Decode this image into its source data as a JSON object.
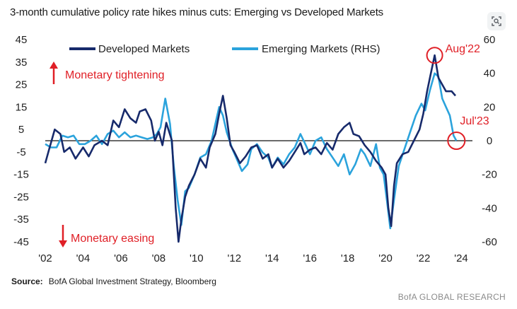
{
  "title": "3-month cumulative policy rate hikes minus cuts: Emerging vs Developed Markets",
  "source_label": "Source:",
  "source_text": "BofA Global Investment Strategy, Bloomberg",
  "brand": "BofA GLOBAL RESEARCH",
  "lens_icon": "image-search-icon",
  "annotations": {
    "tightening": "Monetary tightening",
    "easing": "Monetary easing",
    "peak": "Aug'22",
    "latest": "Jul'23"
  },
  "colors": {
    "dm": "#172a6b",
    "em": "#2ba3dc",
    "annotation": "#e01f26"
  },
  "chart_data": {
    "type": "line",
    "x_ticks": [
      "'02",
      "'04",
      "'06",
      "'08",
      "'10",
      "'12",
      "'14",
      "'16",
      "'18",
      "'20",
      "'22",
      "'24"
    ],
    "y_left_ticks": [
      "45",
      "35",
      "25",
      "15",
      "5",
      "-5",
      "-15",
      "-25",
      "-35",
      "-45"
    ],
    "y_right_ticks": [
      "60",
      "40",
      "20",
      "0",
      "-20",
      "-40",
      "-60"
    ],
    "ylim_left": [
      -45,
      45
    ],
    "ylim_right": [
      -60,
      60
    ],
    "xlim": [
      2002,
      2024
    ],
    "series": [
      {
        "name": "Developed Markets",
        "axis": "left",
        "points": [
          [
            2002.0,
            -10
          ],
          [
            2002.2,
            -4
          ],
          [
            2002.5,
            5
          ],
          [
            2002.8,
            3
          ],
          [
            2003.0,
            -5
          ],
          [
            2003.3,
            -3
          ],
          [
            2003.6,
            -8
          ],
          [
            2004.0,
            -3
          ],
          [
            2004.3,
            -7
          ],
          [
            2004.6,
            -2
          ],
          [
            2005.0,
            0
          ],
          [
            2005.3,
            -2
          ],
          [
            2005.6,
            9
          ],
          [
            2005.9,
            6
          ],
          [
            2006.2,
            14
          ],
          [
            2006.5,
            10
          ],
          [
            2006.8,
            8
          ],
          [
            2007.0,
            13
          ],
          [
            2007.3,
            14
          ],
          [
            2007.6,
            9
          ],
          [
            2007.8,
            0
          ],
          [
            2008.0,
            4
          ],
          [
            2008.2,
            -2
          ],
          [
            2008.4,
            8
          ],
          [
            2008.7,
            0
          ],
          [
            2008.9,
            -30
          ],
          [
            2009.05,
            -45
          ],
          [
            2009.2,
            -35
          ],
          [
            2009.4,
            -25
          ],
          [
            2009.6,
            -20
          ],
          [
            2009.9,
            -15
          ],
          [
            2010.2,
            -8
          ],
          [
            2010.5,
            -12
          ],
          [
            2010.7,
            -3
          ],
          [
            2011.0,
            3
          ],
          [
            2011.2,
            12
          ],
          [
            2011.4,
            20
          ],
          [
            2011.6,
            10
          ],
          [
            2011.8,
            -2
          ],
          [
            2012.0,
            -5
          ],
          [
            2012.3,
            -10
          ],
          [
            2012.6,
            -7
          ],
          [
            2012.9,
            -3
          ],
          [
            2013.2,
            -2
          ],
          [
            2013.5,
            -8
          ],
          [
            2013.8,
            -6
          ],
          [
            2014.0,
            -12
          ],
          [
            2014.3,
            -8
          ],
          [
            2014.6,
            -12
          ],
          [
            2014.9,
            -9
          ],
          [
            2015.2,
            -5
          ],
          [
            2015.5,
            -1
          ],
          [
            2015.7,
            -6
          ],
          [
            2016.0,
            -4
          ],
          [
            2016.3,
            -3
          ],
          [
            2016.6,
            -6
          ],
          [
            2016.9,
            -1
          ],
          [
            2017.2,
            -4
          ],
          [
            2017.5,
            3
          ],
          [
            2017.8,
            6
          ],
          [
            2018.1,
            8
          ],
          [
            2018.3,
            3
          ],
          [
            2018.6,
            2
          ],
          [
            2018.9,
            -2
          ],
          [
            2019.2,
            -5
          ],
          [
            2019.5,
            -9
          ],
          [
            2019.8,
            -12
          ],
          [
            2020.0,
            -15
          ],
          [
            2020.15,
            -30
          ],
          [
            2020.3,
            -38
          ],
          [
            2020.45,
            -20
          ],
          [
            2020.6,
            -10
          ],
          [
            2020.9,
            -6
          ],
          [
            2021.2,
            -5
          ],
          [
            2021.5,
            0
          ],
          [
            2021.8,
            5
          ],
          [
            2022.0,
            12
          ],
          [
            2022.2,
            22
          ],
          [
            2022.4,
            30
          ],
          [
            2022.6,
            38
          ],
          [
            2022.8,
            28
          ],
          [
            2023.0,
            25
          ],
          [
            2023.2,
            22
          ],
          [
            2023.5,
            22
          ],
          [
            2023.7,
            20
          ]
        ]
      },
      {
        "name": "Emerging Markets (RHS)",
        "axis": "right",
        "points": [
          [
            2002.0,
            -2
          ],
          [
            2002.3,
            -4
          ],
          [
            2002.6,
            -4
          ],
          [
            2002.9,
            3
          ],
          [
            2003.2,
            2
          ],
          [
            2003.5,
            3
          ],
          [
            2003.8,
            -2
          ],
          [
            2004.1,
            -2
          ],
          [
            2004.4,
            0
          ],
          [
            2004.7,
            3
          ],
          [
            2005.0,
            -2
          ],
          [
            2005.3,
            4
          ],
          [
            2005.6,
            6
          ],
          [
            2005.9,
            2
          ],
          [
            2006.2,
            5
          ],
          [
            2006.5,
            2
          ],
          [
            2006.8,
            3
          ],
          [
            2007.1,
            2
          ],
          [
            2007.4,
            1
          ],
          [
            2007.7,
            2
          ],
          [
            2007.9,
            4
          ],
          [
            2008.1,
            8
          ],
          [
            2008.35,
            25
          ],
          [
            2008.6,
            10
          ],
          [
            2008.8,
            -15
          ],
          [
            2009.0,
            -35
          ],
          [
            2009.2,
            -50
          ],
          [
            2009.4,
            -30
          ],
          [
            2009.6,
            -28
          ],
          [
            2009.9,
            -20
          ],
          [
            2010.2,
            -10
          ],
          [
            2010.5,
            -8
          ],
          [
            2010.8,
            0
          ],
          [
            2011.0,
            10
          ],
          [
            2011.2,
            20
          ],
          [
            2011.4,
            15
          ],
          [
            2011.6,
            5
          ],
          [
            2011.9,
            -5
          ],
          [
            2012.1,
            -10
          ],
          [
            2012.4,
            -18
          ],
          [
            2012.7,
            -14
          ],
          [
            2012.9,
            -5
          ],
          [
            2013.2,
            -2
          ],
          [
            2013.5,
            -7
          ],
          [
            2013.8,
            -10
          ],
          [
            2014.0,
            -16
          ],
          [
            2014.3,
            -10
          ],
          [
            2014.6,
            -14
          ],
          [
            2014.9,
            -8
          ],
          [
            2015.2,
            -4
          ],
          [
            2015.5,
            4
          ],
          [
            2015.8,
            -3
          ],
          [
            2016.0,
            -8
          ],
          [
            2016.3,
            0
          ],
          [
            2016.6,
            2
          ],
          [
            2016.9,
            -5
          ],
          [
            2017.2,
            -10
          ],
          [
            2017.5,
            -15
          ],
          [
            2017.8,
            -8
          ],
          [
            2018.1,
            -20
          ],
          [
            2018.4,
            -14
          ],
          [
            2018.7,
            -5
          ],
          [
            2018.9,
            -8
          ],
          [
            2019.2,
            -15
          ],
          [
            2019.5,
            -2
          ],
          [
            2019.7,
            -16
          ],
          [
            2019.9,
            -20
          ],
          [
            2020.1,
            -38
          ],
          [
            2020.25,
            -52
          ],
          [
            2020.45,
            -35
          ],
          [
            2020.7,
            -15
          ],
          [
            2021.0,
            -5
          ],
          [
            2021.3,
            5
          ],
          [
            2021.6,
            15
          ],
          [
            2021.9,
            22
          ],
          [
            2022.1,
            18
          ],
          [
            2022.35,
            30
          ],
          [
            2022.6,
            40
          ],
          [
            2022.8,
            38
          ],
          [
            2023.0,
            25
          ],
          [
            2023.2,
            20
          ],
          [
            2023.4,
            15
          ],
          [
            2023.6,
            3
          ],
          [
            2023.75,
            0
          ]
        ]
      }
    ]
  }
}
